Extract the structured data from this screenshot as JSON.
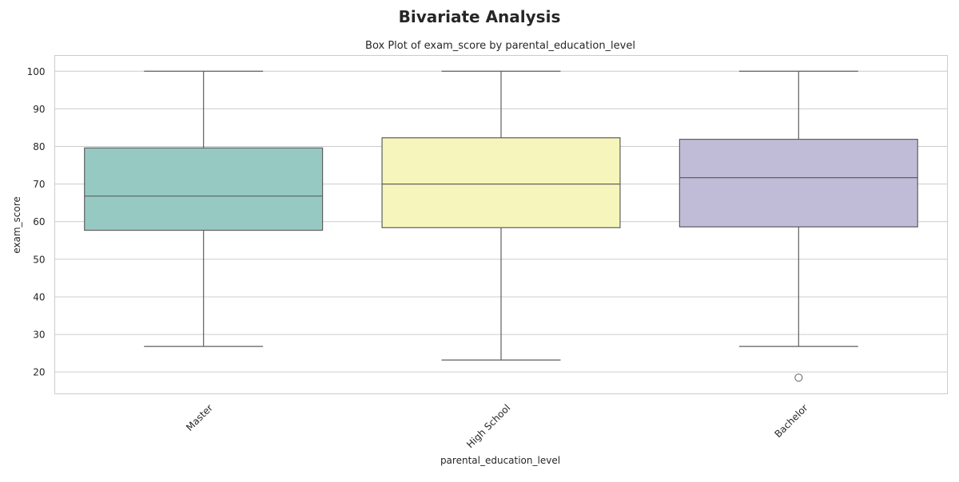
{
  "figure": {
    "suptitle": "Bivariate Analysis"
  },
  "chart_data": {
    "type": "box",
    "title": "Box Plot of exam_score by parental_education_level",
    "xlabel": "parental_education_level",
    "ylabel": "exam_score",
    "ylim": [
      14.2,
      104.2
    ],
    "yticks": [
      20,
      30,
      40,
      50,
      60,
      70,
      80,
      90,
      100
    ],
    "grid": true,
    "categories": [
      "Master",
      "High School",
      "Bachelor"
    ],
    "boxes": [
      {
        "category": "Master",
        "whisker_low": 26.8,
        "q1": 57.7,
        "median": 66.8,
        "q3": 79.6,
        "whisker_high": 100,
        "outliers": [],
        "color": "#96C9C1"
      },
      {
        "category": "High School",
        "whisker_low": 23.2,
        "q1": 58.4,
        "median": 70.0,
        "q3": 82.3,
        "whisker_high": 100,
        "outliers": [],
        "color": "#F6F6BC"
      },
      {
        "category": "Bachelor",
        "whisker_low": 26.8,
        "q1": 58.6,
        "median": 71.7,
        "q3": 81.9,
        "whisker_high": 100,
        "outliers": [
          18.5
        ],
        "color": "#C0BCD7"
      }
    ],
    "colors": {
      "grid": "#cccccc",
      "frame": "#cccccc",
      "line": "#5f5f5f"
    }
  }
}
